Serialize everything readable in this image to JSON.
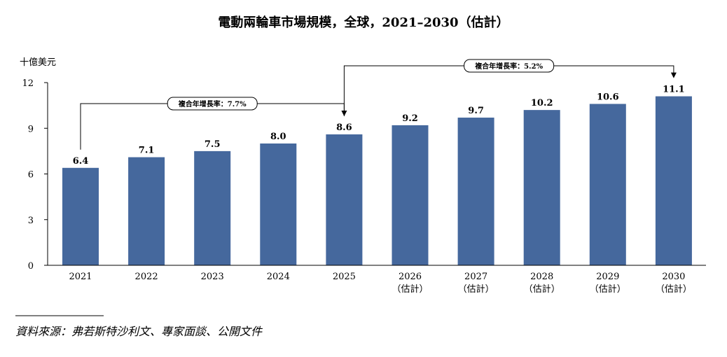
{
  "colors": {
    "bar": "#45689d",
    "axis": "#000000"
  },
  "chart_data": {
    "type": "bar",
    "title": "電動兩輪車市場規模，全球，2021–2030（估計）",
    "unit_label": "十億美元",
    "categories": [
      {
        "year": "2021",
        "note": ""
      },
      {
        "year": "2022",
        "note": ""
      },
      {
        "year": "2023",
        "note": ""
      },
      {
        "year": "2024",
        "note": ""
      },
      {
        "year": "2025",
        "note": ""
      },
      {
        "year": "2026",
        "note": "（估計）"
      },
      {
        "year": "2027",
        "note": "（估計）"
      },
      {
        "year": "2028",
        "note": "（估計）"
      },
      {
        "year": "2029",
        "note": "（估計）"
      },
      {
        "year": "2030",
        "note": "（估計）"
      }
    ],
    "values": [
      6.4,
      7.1,
      7.5,
      8.0,
      8.6,
      9.2,
      9.7,
      10.2,
      10.6,
      11.1
    ],
    "ylim": [
      0,
      12
    ],
    "yticks": [
      0,
      3,
      6,
      9,
      12
    ],
    "grid": false,
    "annotations": [
      {
        "label": "複合年增長率：7.7%",
        "from_index": 0,
        "to_index": 4
      },
      {
        "label": "複合年增長率：5.2%",
        "from_index": 4,
        "to_index": 9
      }
    ]
  },
  "source": "資料來源：弗若斯特沙利文、專家面談、公開文件"
}
